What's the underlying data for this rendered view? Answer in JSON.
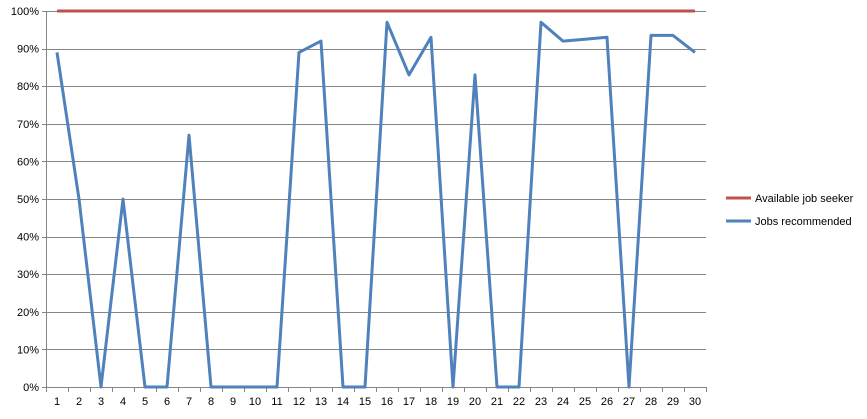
{
  "chart_data": {
    "type": "line",
    "title": "",
    "xlabel": "",
    "ylabel": "",
    "ylim": [
      0,
      100
    ],
    "y_ticks": [
      0,
      10,
      20,
      30,
      40,
      50,
      60,
      70,
      80,
      90,
      100
    ],
    "y_tick_suffix": "%",
    "grid": true,
    "legend_position": "right",
    "categories": [
      1,
      2,
      3,
      4,
      5,
      6,
      7,
      8,
      9,
      10,
      11,
      12,
      13,
      14,
      15,
      16,
      17,
      18,
      19,
      20,
      21,
      22,
      23,
      24,
      25,
      26,
      27,
      28,
      29,
      30
    ],
    "series": [
      {
        "name": "Available job seeker",
        "color": "#c0504d",
        "values": [
          100,
          100,
          100,
          100,
          100,
          100,
          100,
          100,
          100,
          100,
          100,
          100,
          100,
          100,
          100,
          100,
          100,
          100,
          100,
          100,
          100,
          100,
          100,
          100,
          100,
          100,
          100,
          100,
          100,
          100
        ]
      },
      {
        "name": "Jobs recommended",
        "color": "#4f81bd",
        "values": [
          89,
          50,
          0,
          50,
          0,
          0,
          67,
          0,
          0,
          0,
          0,
          89,
          92,
          0,
          0,
          97,
          83,
          93,
          0,
          83,
          0,
          0,
          97,
          92,
          92.5,
          93,
          0,
          93.5,
          93.5,
          89
        ]
      }
    ]
  }
}
